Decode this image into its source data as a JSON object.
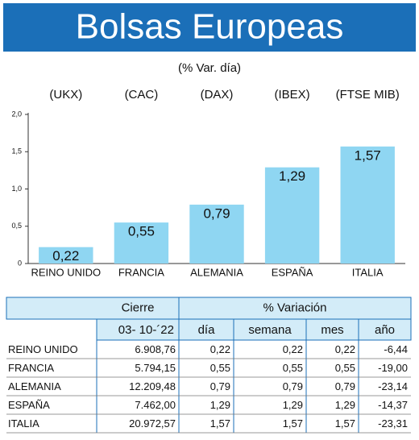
{
  "chart_data": {
    "type": "bar",
    "title": "Bolsas Europeas",
    "subtitle": "(% Var. día)",
    "indices": [
      "(UKX)",
      "(CAC)",
      "(DAX)",
      "(IBEX)",
      "(FTSE MIB)"
    ],
    "categories": [
      "REINO UNIDO",
      "FRANCIA",
      "ALEMANIA",
      "ESPAÑA",
      "ITALIA"
    ],
    "values": [
      0.22,
      0.55,
      0.79,
      1.29,
      1.57
    ],
    "value_labels": [
      "0,22",
      "0,55",
      "0,79",
      "1,29",
      "1,57"
    ],
    "color": "#8fd6f2",
    "ylim": [
      0,
      2
    ],
    "yticks": [
      0,
      {
        "value": 0.5,
        "label": "0,5"
      },
      {
        "value": 1,
        "label": "1,0"
      },
      {
        "value": 1.5,
        "label": "1,5"
      },
      {
        "value": 2,
        "label": "2,0"
      }
    ]
  },
  "table": {
    "group_headers": [
      "Cierre",
      "% Variación"
    ],
    "headers": [
      "03- 10-´22",
      "día",
      "semana",
      "mes",
      "año"
    ],
    "rows": [
      [
        "REINO UNIDO",
        "6.908,76",
        "0,22",
        "0,22",
        "0,22",
        "-6,44"
      ],
      [
        "FRANCIA",
        "5.794,15",
        "0,55",
        "0,55",
        "0,55",
        "-19,00"
      ],
      [
        "ALEMANIA",
        "12.209,48",
        "0,79",
        "0,79",
        "0,79",
        "-23,14"
      ],
      [
        "ESPAÑA",
        "7.462,00",
        "1,29",
        "1,29",
        "1,29",
        "-14,37"
      ],
      [
        "ITALIA",
        "20.972,57",
        "1,57",
        "1,57",
        "1,57",
        "-23,31"
      ]
    ]
  }
}
